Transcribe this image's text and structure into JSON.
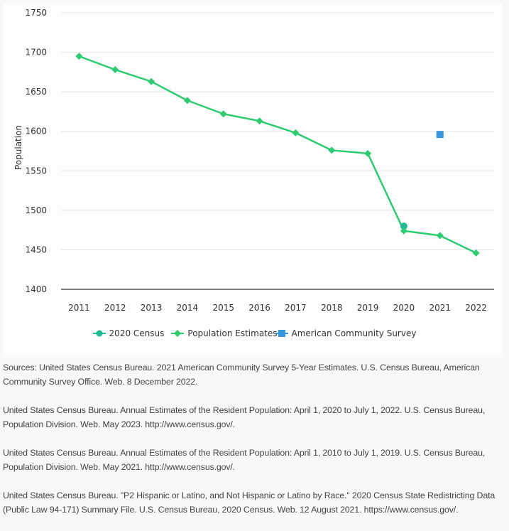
{
  "chart_data": {
    "type": "line",
    "title": "",
    "xlabel": "",
    "ylabel": "Population",
    "ylim": [
      1400,
      1750
    ],
    "yticks": [
      1400,
      1450,
      1500,
      1550,
      1600,
      1650,
      1700,
      1750
    ],
    "categories": [
      "2011",
      "2012",
      "2013",
      "2014",
      "2015",
      "2016",
      "2017",
      "2018",
      "2019",
      "2020",
      "2021",
      "2022"
    ],
    "grid": true,
    "legend_position": "bottom-center",
    "series": [
      {
        "name": "2020 Census",
        "marker": "circle",
        "color": "#1fba94",
        "values": [
          null,
          null,
          null,
          null,
          null,
          null,
          null,
          null,
          null,
          1480,
          null,
          null
        ]
      },
      {
        "name": "Population Estimates",
        "marker": "diamond",
        "color": "#2ecc71",
        "values": [
          1695,
          1678,
          1663,
          1639,
          1622,
          1613,
          1598,
          1576,
          1572,
          1474,
          1468,
          1446
        ]
      },
      {
        "name": "American Community Survey",
        "marker": "square",
        "color": "#3498db",
        "values": [
          null,
          null,
          null,
          null,
          null,
          null,
          null,
          null,
          null,
          null,
          1596,
          null
        ]
      }
    ]
  },
  "sources": [
    "Sources: United States Census Bureau. 2021 American Community Survey 5-Year Estimates. U.S. Census Bureau, American Community Survey Office. Web. 8 December 2022.",
    "United States Census Bureau. Annual Estimates of the Resident Population: April 1, 2020 to July 1, 2022. U.S. Census Bureau, Population Division. Web. May 2023. http://www.census.gov/.",
    "United States Census Bureau. Annual Estimates of the Resident Population: April 1, 2010 to July 1, 2019. U.S. Census Bureau, Population Division. Web. May 2021. http://www.census.gov/.",
    "United States Census Bureau. \"P2 Hispanic or Latino, and Not Hispanic or Latino by Race.\" 2020 Census State Redistricting Data (Public Law 94-171) Summary File. U.S. Census Bureau, 2020 Census. Web. 12 August 2021. https://www.census.gov/."
  ]
}
